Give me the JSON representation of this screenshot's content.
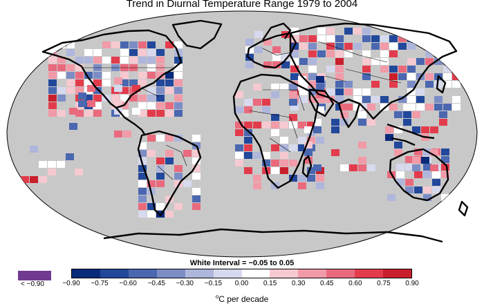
{
  "title": "Trend in Diurnal Temperature Range 1979 to 2004",
  "legend": {
    "white_interval": "White Interval = −0.05 to 0.05",
    "under_label": "< −0.90",
    "under_color": "#6f3a8f",
    "unit_label_sup": "o",
    "unit_label_text": "C per decade",
    "ticks": [
      "−0.90",
      "−0.75",
      "−0.60",
      "−0.45",
      "−0.30",
      "−0.15",
      "0.00",
      "0.15",
      "0.30",
      "0.45",
      "0.60",
      "0.75",
      "0.90"
    ],
    "colors": [
      "#0a2a7a",
      "#22489b",
      "#4a67b0",
      "#7c8dc6",
      "#aeb6dc",
      "#d7daee",
      "#ffffff",
      "#f6c9d0",
      "#f19aa8",
      "#ea6a7d",
      "#e23c4c",
      "#c91f2c"
    ]
  },
  "map": {
    "ocean_color": "#c8c8c8",
    "coast_color": "#000000"
  }
}
